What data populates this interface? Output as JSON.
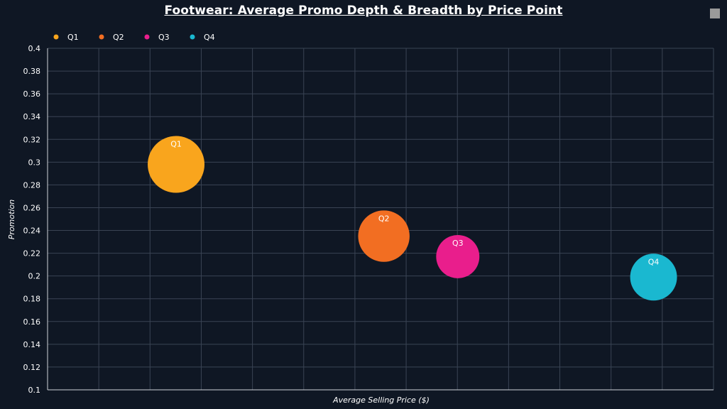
{
  "chart_data": {
    "type": "scatter",
    "title": "Footwear: Average Promo Depth & Breadth by Price Point",
    "xlabel": "Average Selling Price ($)",
    "ylabel": "Promotion",
    "ylim": [
      0.1,
      0.4
    ],
    "yticks": [
      "0.1",
      "0.12",
      "0.14",
      "0.16",
      "0.18",
      "0.2",
      "0.22",
      "0.24",
      "0.26",
      "0.28",
      "0.3",
      "0.32",
      "0.34",
      "0.36",
      "0.38",
      "0.4"
    ],
    "xticks_shown": false,
    "grid": true,
    "legend_position": "top-left",
    "series": [
      {
        "name": "Q1",
        "color": "#f9a51d",
        "x": 0.193,
        "y": 0.298,
        "size": 1.0
      },
      {
        "name": "Q2",
        "color": "#f26e22",
        "x": 0.505,
        "y": 0.235,
        "size": 0.82
      },
      {
        "name": "Q3",
        "color": "#e91e8c",
        "x": 0.616,
        "y": 0.217,
        "size": 0.58
      },
      {
        "name": "Q4",
        "color": "#1ab8d0",
        "x": 0.91,
        "y": 0.199,
        "size": 0.68
      }
    ]
  }
}
